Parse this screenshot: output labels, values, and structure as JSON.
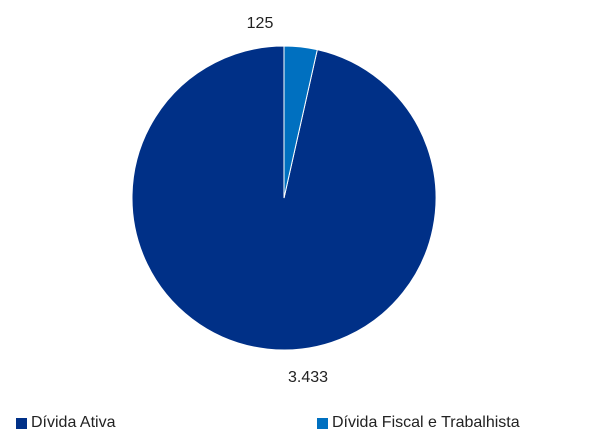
{
  "chart_data": {
    "type": "pie",
    "title": "",
    "slices": [
      {
        "label": "Dívida Ativa",
        "value": 3433,
        "value_label": "3.433",
        "color": "#003087"
      },
      {
        "label": "Dívida Fiscal e Trabalhista",
        "value": 125,
        "value_label": "125",
        "color": "#0070c0"
      }
    ],
    "legend_position": "bottom"
  }
}
